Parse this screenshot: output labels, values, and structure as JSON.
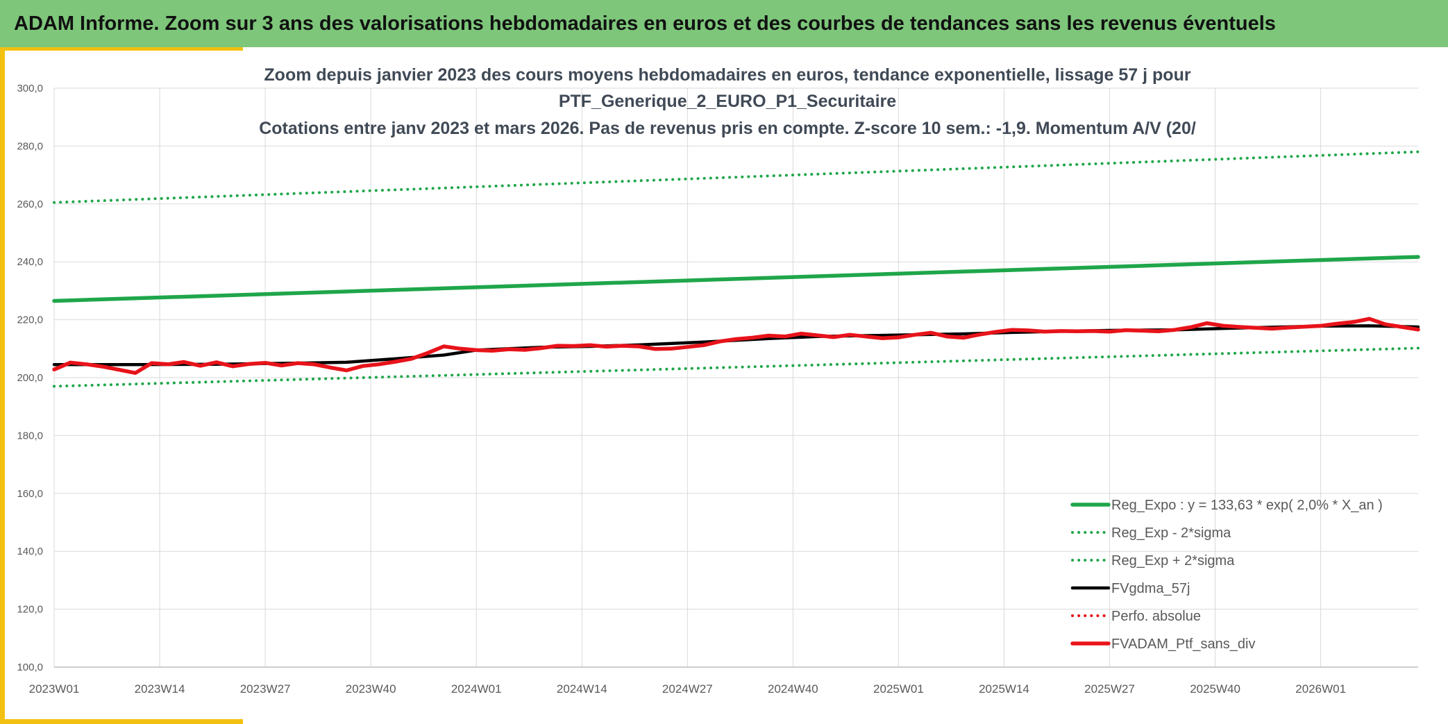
{
  "header": {
    "title": "ADAM Informe. Zoom sur 3 ans des valorisations hebdomadaires en euros et des courbes de tendances sans les revenus éventuels"
  },
  "colors": {
    "header_bg": "#7dc67a",
    "accent": "#f2c010",
    "trend_green": "#1fa64a",
    "black": "#000000",
    "red": "#e8131a"
  },
  "chart_data": {
    "type": "line",
    "title_lines": [
      "Zoom depuis janvier 2023 des cours moyens hebdomadaires en euros, tendance exponentielle, lissage 57 j pour",
      "PTF_Generique_2_EURO_P1_Securitaire",
      "Cotations entre janv 2023 et mars 2026. Pas de revenus pris en compte. Z-score 10 sem.: -1,9. Momentum A/V (20/"
    ],
    "xlabel": "",
    "ylabel": "",
    "ylim": [
      100,
      300
    ],
    "y_ticks": [
      "100,0",
      "120,0",
      "140,0",
      "160,0",
      "180,0",
      "200,0",
      "220,0",
      "240,0",
      "260,0",
      "280,0",
      "300,0"
    ],
    "y_tick_values": [
      100,
      120,
      140,
      160,
      180,
      200,
      220,
      240,
      260,
      280,
      300
    ],
    "x_ticks": [
      "2023W01",
      "2023W14",
      "2023W27",
      "2023W40",
      "2024W01",
      "2024W14",
      "2024W27",
      "2024W40",
      "2025W01",
      "2025W14",
      "2025W27",
      "2025W40",
      "2026W01"
    ],
    "x_tick_weeks": [
      0,
      13,
      26,
      39,
      52,
      65,
      78,
      91,
      104,
      117,
      130,
      143,
      156
    ],
    "x_range_weeks": [
      0,
      168
    ],
    "grid": true,
    "legend_position": "bottom-right",
    "series": [
      {
        "name": "Reg_Expo : y = 133,63 * exp( 2,0% *  X_an )",
        "style": "solid-thick",
        "color": "#1fa64a",
        "x": [
          0,
          168
        ],
        "values": [
          226.5,
          241.7
        ]
      },
      {
        "name": "Reg_Exp - 2*sigma",
        "style": "dotted",
        "color": "#1fa64a",
        "x": [
          0,
          168
        ],
        "values": [
          197.0,
          210.2
        ]
      },
      {
        "name": "Reg_Exp + 2*sigma",
        "style": "dotted",
        "color": "#1fa64a",
        "x": [
          0,
          168
        ],
        "values": [
          260.5,
          278.0
        ]
      },
      {
        "name": "FVgdma_57j",
        "style": "solid",
        "color": "#000000",
        "x": [
          0,
          10,
          20,
          30,
          36,
          42,
          48,
          52,
          60,
          66,
          72,
          80,
          88,
          94,
          100,
          106,
          112,
          118,
          124,
          130,
          138,
          144,
          150,
          156,
          162,
          168
        ],
        "values": [
          204.5,
          204.5,
          204.6,
          205.0,
          205.3,
          206.5,
          207.8,
          209.5,
          210.5,
          210.8,
          211.3,
          212.3,
          213.5,
          214.2,
          214.5,
          214.8,
          215.1,
          215.6,
          216.0,
          216.3,
          216.5,
          217.0,
          217.4,
          217.8,
          217.9,
          217.5
        ]
      },
      {
        "name": "Perfo. absolue",
        "style": "dotted",
        "color": "#e8131a",
        "x": [],
        "values": []
      },
      {
        "name": "FVADAM_Ptf_sans_div",
        "style": "solid-thick",
        "color": "#e8131a",
        "x": [
          0,
          2,
          4,
          6,
          8,
          10,
          12,
          14,
          16,
          18,
          20,
          22,
          24,
          26,
          28,
          30,
          32,
          34,
          36,
          38,
          40,
          42,
          44,
          46,
          48,
          50,
          52,
          54,
          56,
          58,
          60,
          62,
          64,
          66,
          68,
          70,
          72,
          74,
          76,
          78,
          80,
          82,
          84,
          86,
          88,
          90,
          92,
          94,
          96,
          98,
          100,
          102,
          104,
          106,
          108,
          110,
          112,
          114,
          116,
          118,
          120,
          122,
          124,
          126,
          128,
          130,
          132,
          134,
          136,
          138,
          140,
          142,
          144,
          146,
          148,
          150,
          152,
          154,
          156,
          158,
          160,
          162,
          164,
          166,
          168
        ],
        "values": [
          202.8,
          205.2,
          204.6,
          203.8,
          202.7,
          201.6,
          205.0,
          204.6,
          205.4,
          204.1,
          205.3,
          203.9,
          204.7,
          205.1,
          204.2,
          205.0,
          204.6,
          203.5,
          202.5,
          204.0,
          204.6,
          205.5,
          206.5,
          208.5,
          210.8,
          210.0,
          209.5,
          209.3,
          209.8,
          209.6,
          210.2,
          211.0,
          210.9,
          211.2,
          210.7,
          211.0,
          210.8,
          209.9,
          210.0,
          210.6,
          211.2,
          212.5,
          213.3,
          213.8,
          214.5,
          214.2,
          215.2,
          214.6,
          214.0,
          214.8,
          214.2,
          213.6,
          213.9,
          214.8,
          215.5,
          214.2,
          213.8,
          214.9,
          215.8,
          216.5,
          216.3,
          215.9,
          216.1,
          216.0,
          216.1,
          215.9,
          216.4,
          216.2,
          216.0,
          216.5,
          217.4,
          218.8,
          217.9,
          217.5,
          217.2,
          216.9,
          217.3,
          217.6,
          217.9,
          218.6,
          219.2,
          220.3,
          218.4,
          217.5,
          216.6
        ]
      }
    ]
  }
}
